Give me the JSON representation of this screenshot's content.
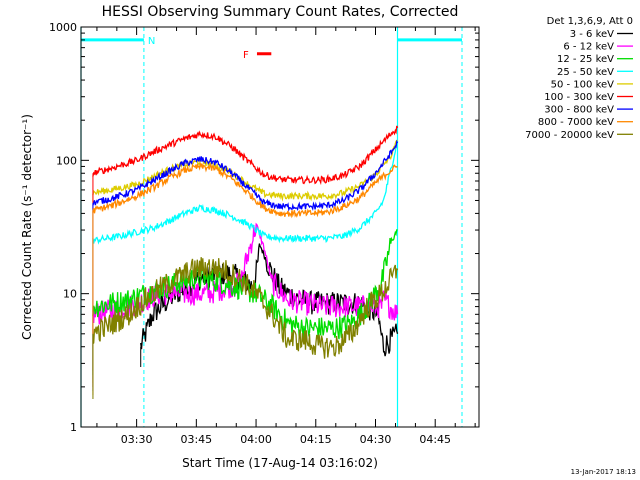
{
  "chart_data": {
    "type": "line",
    "title": "HESSI Observing Summary Count Rates, Corrected",
    "xlabel": "Start Time (17-Aug-14 03:16:02)",
    "ylabel": "Corrected Count Rate (s⁻¹ detector⁻¹)",
    "y_scale": "log",
    "ylim": [
      1,
      1000
    ],
    "xlim_minutes_after_start": [
      0,
      99.97
    ],
    "yticks": [
      "1",
      "10",
      "100",
      "1000"
    ],
    "xticks": [
      {
        "label": "03:30",
        "t": 13.97
      },
      {
        "label": "03:45",
        "t": 28.97
      },
      {
        "label": "04:00",
        "t": 43.97
      },
      {
        "label": "04:15",
        "t": 58.97
      },
      {
        "label": "04:30",
        "t": 73.97
      },
      {
        "label": "04:45",
        "t": 88.97
      }
    ],
    "legend_title": "Det 1,3,6,9, Att 0",
    "legend_position": "right",
    "series": [
      {
        "name": "3 - 6 keV",
        "color": "#000000",
        "x": [
          15.0,
          18,
          22,
          26,
          30,
          34,
          38,
          40,
          42,
          43.5,
          45,
          46.5,
          48,
          50,
          52,
          55,
          58,
          62,
          66,
          70,
          74.5,
          76,
          79.5
        ],
        "y": [
          4,
          7,
          9,
          11,
          13,
          14,
          14,
          13,
          12,
          11,
          23,
          18,
          14,
          11,
          10,
          9,
          8.5,
          8.5,
          8.5,
          8.5,
          7,
          4,
          5
        ]
      },
      {
        "name": "6 - 12 keV",
        "color": "#ff00ff",
        "x": [
          3,
          8,
          12,
          16,
          20,
          24,
          28,
          32,
          36,
          40,
          44,
          46,
          48,
          52,
          56,
          60,
          64,
          68,
          72,
          75.5,
          76,
          79.5
        ],
        "y": [
          7,
          7.5,
          8,
          9,
          10,
          10,
          10,
          10,
          11,
          12,
          33,
          22,
          12,
          9,
          8.5,
          8,
          8,
          8,
          8,
          8,
          9,
          7
        ]
      },
      {
        "name": "12 - 25 keV",
        "color": "#00dd00",
        "x": [
          3,
          8,
          12,
          16,
          20,
          24,
          28,
          32,
          36,
          40,
          44,
          48,
          52,
          56,
          60,
          64,
          68,
          72,
          75.5,
          78,
          79.5
        ],
        "y": [
          8,
          8.5,
          9,
          10,
          11,
          12,
          13,
          13,
          12,
          11,
          10,
          8,
          6,
          5.5,
          5.5,
          5.5,
          6,
          8,
          12,
          25,
          30
        ]
      },
      {
        "name": "25 - 50 keV",
        "color": "#00ffff",
        "x": [
          3,
          10,
          14,
          18,
          22,
          26,
          30,
          34,
          38,
          42,
          44,
          46,
          50,
          54,
          58,
          62,
          66,
          70,
          74,
          76,
          78,
          79.5
        ],
        "y": [
          25,
          27,
          29,
          31,
          35,
          40,
          44,
          42,
          38,
          33,
          30,
          27,
          26,
          26,
          26,
          26,
          27,
          31,
          40,
          50,
          90,
          140
        ]
      },
      {
        "name": "50 - 100 keV",
        "color": "#ddcc00",
        "x": [
          3,
          10,
          14,
          18,
          22,
          26,
          30,
          34,
          38,
          42,
          46,
          50,
          54,
          58,
          62,
          66,
          70,
          74,
          78,
          79.5
        ],
        "y": [
          57,
          62,
          66,
          75,
          85,
          93,
          98,
          92,
          80,
          66,
          56,
          54,
          54,
          54,
          54,
          57,
          64,
          78,
          110,
          140
        ]
      },
      {
        "name": "100 - 300 keV",
        "color": "#ff0000",
        "x": [
          3,
          8,
          14,
          18,
          22,
          26,
          30,
          34,
          38,
          42,
          46,
          50,
          54,
          58,
          62,
          66,
          70,
          74,
          78,
          79.5
        ],
        "y": [
          80,
          88,
          100,
          115,
          130,
          145,
          158,
          150,
          125,
          98,
          78,
          72,
          71,
          71,
          72,
          77,
          90,
          120,
          160,
          175
        ]
      },
      {
        "name": "300 - 800 keV",
        "color": "#0000ff",
        "x": [
          3,
          8,
          14,
          18,
          22,
          26,
          30,
          34,
          38,
          42,
          46,
          50,
          54,
          58,
          62,
          66,
          70,
          74,
          78,
          79.5
        ],
        "y": [
          48,
          52,
          60,
          70,
          82,
          95,
          102,
          96,
          80,
          62,
          48,
          45,
          45,
          45,
          46,
          50,
          60,
          80,
          115,
          135
        ]
      },
      {
        "name": "800 - 7000 keV",
        "color": "#ff8800",
        "x": [
          3,
          8,
          14,
          18,
          22,
          26,
          30,
          34,
          38,
          42,
          46,
          50,
          54,
          58,
          62,
          66,
          70,
          74,
          78,
          79.5
        ],
        "y": [
          42,
          46,
          54,
          62,
          73,
          84,
          90,
          86,
          72,
          57,
          44,
          40,
          40,
          40,
          41,
          45,
          52,
          68,
          85,
          90
        ]
      },
      {
        "name": "7000 - 20000 keV",
        "color": "#808000",
        "x": [
          3,
          8,
          12,
          16,
          20,
          24,
          28,
          32,
          36,
          40,
          44,
          48,
          52,
          56,
          60,
          64,
          68,
          72,
          75.5,
          78,
          79.5
        ],
        "y": [
          5,
          6,
          7,
          9,
          11,
          13,
          15,
          16,
          15,
          13,
          10,
          7,
          4.5,
          4.5,
          4,
          4,
          5,
          8,
          10,
          13,
          15
        ]
      }
    ],
    "annotations": [
      {
        "label": "N",
        "color": "#00ffff",
        "kind": "night_bars",
        "bar_intervals": [
          [
            0,
            15.8
          ],
          [
            79.5,
            95.7
          ]
        ],
        "night_bar_y": 800,
        "boundaries_solid": [
          0,
          79.5
        ],
        "boundaries_dashed": [
          15.8,
          95.7
        ]
      },
      {
        "label": "F",
        "color": "#ff0000",
        "kind": "flare_bar",
        "interval": [
          44.2,
          47.8
        ],
        "y": 630
      }
    ],
    "grid": false,
    "timestamp": "13-Jan-2017 18:13"
  }
}
